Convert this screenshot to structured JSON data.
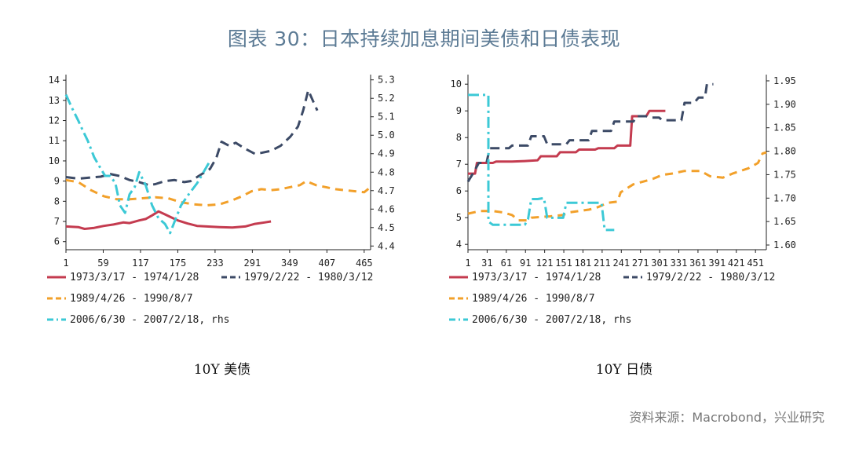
{
  "title": "图表 30：日本持续加息期间美债和日债表现",
  "source": "资料来源：Macrobond，兴业研究",
  "chart_data": [
    {
      "type": "line",
      "caption": "10Y 美债",
      "xticks": [
        "1",
        "59",
        "117",
        "175",
        "233",
        "291",
        "349",
        "407",
        "465"
      ],
      "xlim": [
        1,
        475
      ],
      "ylim_left": [
        5.6,
        14.2
      ],
      "yticks_left": [
        "14",
        "13",
        "12",
        "11",
        "10",
        "9",
        "8",
        "7",
        "6"
      ],
      "ylim_right": [
        4.38,
        5.32
      ],
      "yticks_right": [
        "5.3",
        "5.2",
        "5.1",
        "5.0",
        "4.9",
        "4.8",
        "4.7",
        "4.6",
        "4.5",
        "4.4"
      ],
      "series": [
        {
          "name": "1973/3/17 - 1974/1/28",
          "axis": "left",
          "color": "#c43b4f",
          "dash": "",
          "width": 3,
          "points": [
            [
              1,
              6.75
            ],
            [
              20,
              6.72
            ],
            [
              30,
              6.63
            ],
            [
              45,
              6.68
            ],
            [
              60,
              6.78
            ],
            [
              75,
              6.85
            ],
            [
              90,
              6.95
            ],
            [
              100,
              6.92
            ],
            [
              115,
              7.05
            ],
            [
              125,
              7.12
            ],
            [
              135,
              7.3
            ],
            [
              145,
              7.5
            ],
            [
              155,
              7.35
            ],
            [
              165,
              7.2
            ],
            [
              175,
              7.05
            ],
            [
              190,
              6.9
            ],
            [
              205,
              6.78
            ],
            [
              220,
              6.75
            ],
            [
              240,
              6.72
            ],
            [
              260,
              6.7
            ],
            [
              280,
              6.75
            ],
            [
              295,
              6.88
            ],
            [
              310,
              6.95
            ],
            [
              320,
              7.0
            ]
          ]
        },
        {
          "name": "1979/2/22 - 1980/3/12",
          "axis": "left",
          "color": "#3c4a66",
          "dash": "12,7",
          "width": 3,
          "points": [
            [
              1,
              9.2
            ],
            [
              20,
              9.12
            ],
            [
              40,
              9.18
            ],
            [
              55,
              9.22
            ],
            [
              70,
              9.35
            ],
            [
              85,
              9.25
            ],
            [
              100,
              9.05
            ],
            [
              115,
              8.95
            ],
            [
              130,
              8.8
            ],
            [
              140,
              8.85
            ],
            [
              155,
              9.0
            ],
            [
              170,
              9.05
            ],
            [
              185,
              8.95
            ],
            [
              195,
              9.0
            ],
            [
              210,
              9.3
            ],
            [
              225,
              9.6
            ],
            [
              235,
              10.15
            ],
            [
              243,
              10.95
            ],
            [
              255,
              10.75
            ],
            [
              265,
              10.9
            ],
            [
              280,
              10.6
            ],
            [
              295,
              10.35
            ],
            [
              305,
              10.4
            ],
            [
              320,
              10.5
            ],
            [
              335,
              10.75
            ],
            [
              350,
              11.2
            ],
            [
              362,
              11.7
            ],
            [
              370,
              12.5
            ],
            [
              378,
              13.5
            ],
            [
              385,
              13.0
            ],
            [
              392,
              12.5
            ]
          ]
        },
        {
          "name": "1989/4/26 - 1990/8/7",
          "axis": "left",
          "color": "#f2a02a",
          "dash": "10,7",
          "width": 3,
          "points": [
            [
              1,
              9.05
            ],
            [
              20,
              8.95
            ],
            [
              40,
              8.55
            ],
            [
              60,
              8.25
            ],
            [
              80,
              8.1
            ],
            [
              100,
              8.1
            ],
            [
              120,
              8.15
            ],
            [
              140,
              8.2
            ],
            [
              160,
              8.15
            ],
            [
              180,
              7.95
            ],
            [
              200,
              7.85
            ],
            [
              220,
              7.8
            ],
            [
              240,
              7.85
            ],
            [
              260,
              8.05
            ],
            [
              275,
              8.25
            ],
            [
              290,
              8.5
            ],
            [
              305,
              8.6
            ],
            [
              320,
              8.55
            ],
            [
              335,
              8.6
            ],
            [
              350,
              8.7
            ],
            [
              365,
              8.8
            ],
            [
              375,
              9.0
            ],
            [
              390,
              8.8
            ],
            [
              405,
              8.7
            ],
            [
              420,
              8.6
            ],
            [
              435,
              8.55
            ],
            [
              450,
              8.5
            ],
            [
              465,
              8.45
            ],
            [
              475,
              8.7
            ]
          ]
        },
        {
          "name": "2006/6/30 - 2007/2/18, rhs",
          "axis": "right",
          "color": "#3cc9d6",
          "dash": "14,5,3,5",
          "width": 3,
          "points": [
            [
              1,
              5.22
            ],
            [
              10,
              5.15
            ],
            [
              20,
              5.08
            ],
            [
              28,
              5.02
            ],
            [
              35,
              4.97
            ],
            [
              45,
              4.88
            ],
            [
              55,
              4.82
            ],
            [
              62,
              4.78
            ],
            [
              70,
              4.78
            ],
            [
              78,
              4.74
            ],
            [
              85,
              4.62
            ],
            [
              93,
              4.58
            ],
            [
              100,
              4.68
            ],
            [
              108,
              4.72
            ],
            [
              115,
              4.8
            ],
            [
              125,
              4.73
            ],
            [
              135,
              4.62
            ],
            [
              145,
              4.55
            ],
            [
              155,
              4.52
            ],
            [
              163,
              4.47
            ],
            [
              172,
              4.55
            ],
            [
              180,
              4.62
            ],
            [
              192,
              4.68
            ],
            [
              205,
              4.74
            ],
            [
              215,
              4.8
            ],
            [
              225,
              4.86
            ]
          ]
        }
      ]
    },
    {
      "type": "line",
      "caption": "10Y 日债",
      "xticks": [
        "1",
        "31",
        "61",
        "91",
        "121",
        "151",
        "181",
        "211",
        "241",
        "271",
        "301",
        "331",
        "361",
        "391",
        "421",
        "451"
      ],
      "xlim": [
        1,
        468
      ],
      "ylim_left": [
        3.8,
        10.3
      ],
      "yticks_left": [
        "10",
        "9",
        "8",
        "7",
        "6",
        "5",
        "4"
      ],
      "ylim_right": [
        1.59,
        1.96
      ],
      "yticks_right": [
        "1.95",
        "1.90",
        "1.85",
        "1.80",
        "1.75",
        "1.70",
        "1.65",
        "1.60"
      ],
      "series": [
        {
          "name": "1973/3/17 - 1974/1/28",
          "axis": "left",
          "color": "#c43b4f",
          "dash": "",
          "width": 3,
          "points": [
            [
              1,
              6.65
            ],
            [
              12,
              6.65
            ],
            [
              15,
              7.05
            ],
            [
              40,
              7.05
            ],
            [
              45,
              7.1
            ],
            [
              70,
              7.1
            ],
            [
              90,
              7.12
            ],
            [
              110,
              7.15
            ],
            [
              115,
              7.3
            ],
            [
              140,
              7.3
            ],
            [
              145,
              7.45
            ],
            [
              170,
              7.45
            ],
            [
              175,
              7.55
            ],
            [
              200,
              7.55
            ],
            [
              205,
              7.6
            ],
            [
              230,
              7.6
            ],
            [
              235,
              7.7
            ],
            [
              255,
              7.7
            ],
            [
              258,
              8.8
            ],
            [
              280,
              8.8
            ],
            [
              285,
              9.0
            ],
            [
              310,
              9.0
            ]
          ]
        },
        {
          "name": "1979/2/22 - 1980/3/12",
          "axis": "left",
          "color": "#3c4a66",
          "dash": "12,7",
          "width": 3,
          "points": [
            [
              1,
              6.35
            ],
            [
              10,
              6.7
            ],
            [
              18,
              7.05
            ],
            [
              30,
              7.05
            ],
            [
              35,
              7.6
            ],
            [
              65,
              7.6
            ],
            [
              70,
              7.7
            ],
            [
              95,
              7.7
            ],
            [
              100,
              8.05
            ],
            [
              120,
              8.05
            ],
            [
              125,
              7.75
            ],
            [
              155,
              7.75
            ],
            [
              160,
              7.9
            ],
            [
              190,
              7.9
            ],
            [
              195,
              8.25
            ],
            [
              225,
              8.25
            ],
            [
              230,
              8.6
            ],
            [
              260,
              8.6
            ],
            [
              265,
              8.8
            ],
            [
              280,
              8.8
            ],
            [
              285,
              8.75
            ],
            [
              300,
              8.75
            ],
            [
              305,
              8.65
            ],
            [
              335,
              8.65
            ],
            [
              340,
              9.3
            ],
            [
              355,
              9.3
            ],
            [
              362,
              9.5
            ],
            [
              372,
              9.5
            ],
            [
              375,
              10.0
            ],
            [
              385,
              10.0
            ]
          ]
        },
        {
          "name": "1989/4/26 - 1990/8/7",
          "axis": "left",
          "color": "#f2a02a",
          "dash": "10,7",
          "width": 3,
          "points": [
            [
              1,
              5.15
            ],
            [
              20,
              5.25
            ],
            [
              40,
              5.25
            ],
            [
              55,
              5.2
            ],
            [
              70,
              5.1
            ],
            [
              80,
              4.9
            ],
            [
              95,
              4.9
            ],
            [
              100,
              5.0
            ],
            [
              130,
              5.05
            ],
            [
              150,
              5.1
            ],
            [
              160,
              5.2
            ],
            [
              190,
              5.3
            ],
            [
              200,
              5.35
            ],
            [
              210,
              5.45
            ],
            [
              218,
              5.55
            ],
            [
              235,
              5.6
            ],
            [
              240,
              5.95
            ],
            [
              260,
              6.25
            ],
            [
              275,
              6.35
            ],
            [
              290,
              6.45
            ],
            [
              305,
              6.6
            ],
            [
              320,
              6.65
            ],
            [
              340,
              6.75
            ],
            [
              365,
              6.75
            ],
            [
              380,
              6.55
            ],
            [
              400,
              6.5
            ],
            [
              415,
              6.65
            ],
            [
              440,
              6.85
            ],
            [
              455,
              7.05
            ],
            [
              462,
              7.4
            ],
            [
              468,
              7.45
            ]
          ]
        },
        {
          "name": "2006/6/30 - 2007/2/18, rhs",
          "axis": "right",
          "color": "#3cc9d6",
          "dash": "14,5,3,5",
          "width": 3,
          "points": [
            [
              1,
              1.92
            ],
            [
              33,
              1.92
            ],
            [
              33,
              1.65
            ],
            [
              40,
              1.643
            ],
            [
              60,
              1.643
            ],
            [
              90,
              1.643
            ],
            [
              95,
              1.655
            ],
            [
              100,
              1.698
            ],
            [
              110,
              1.698
            ],
            [
              120,
              1.7
            ],
            [
              125,
              1.658
            ],
            [
              150,
              1.658
            ],
            [
              155,
              1.69
            ],
            [
              185,
              1.69
            ],
            [
              210,
              1.69
            ],
            [
              215,
              1.632
            ],
            [
              230,
              1.632
            ]
          ]
        }
      ]
    }
  ]
}
